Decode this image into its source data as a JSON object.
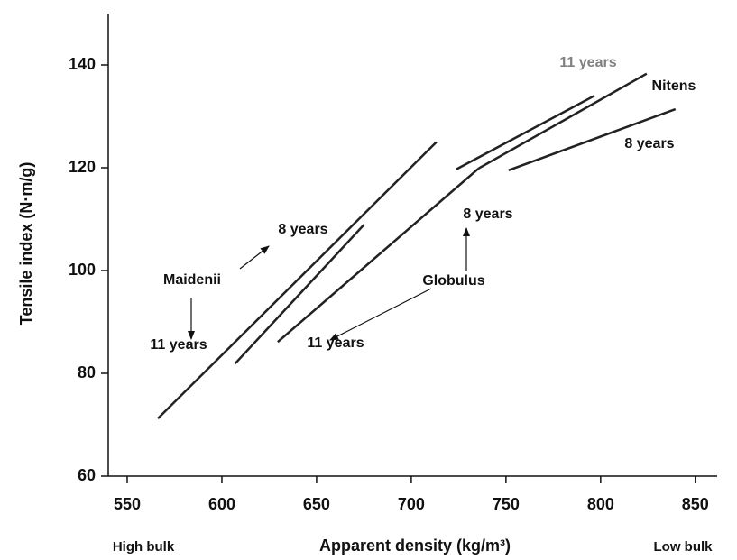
{
  "chart_data": {
    "type": "line",
    "xlabel": "Apparent density (kg/m³)",
    "ylabel": "Tensile index (N·m/g)",
    "left_note": "High bulk",
    "right_note": "Low bulk",
    "xlim": [
      540,
      862
    ],
    "ylim": [
      60,
      150
    ],
    "xticks": [
      550,
      600,
      650,
      700,
      750,
      800,
      850
    ],
    "yticks": [
      60,
      80,
      100,
      120,
      140
    ],
    "series": [
      {
        "color": "#222222",
        "x": [
          566.2,
          713.3
        ],
        "values": [
          71.2,
          125
        ]
      },
      {
        "color": "#222222",
        "x": [
          607,
          675
        ],
        "values": [
          81.9,
          108.9
        ]
      },
      {
        "color": "#222222",
        "x": [
          629.5,
          735.7
        ],
        "values": [
          86.1,
          119.9
        ]
      },
      {
        "color": "#222222",
        "x": [
          723.8,
          796.7
        ],
        "values": [
          119.7,
          134
        ]
      },
      {
        "color": "#222222",
        "x": [
          735.7,
          824.3
        ],
        "values": [
          119.9,
          138.3
        ]
      },
      {
        "color": "#222222",
        "x": [
          751.4,
          839.5
        ],
        "values": [
          119.5,
          131.4
        ]
      }
    ],
    "annotations": [
      {
        "text": "Maidenii",
        "color": "#111111"
      },
      {
        "text": "11 years",
        "color": "#111111"
      },
      {
        "text": "8 years",
        "color": "#111111"
      },
      {
        "text": "Globulus",
        "color": "#111111"
      },
      {
        "text": "11 years",
        "color": "#111111"
      },
      {
        "text": "8 years",
        "color": "#111111"
      },
      {
        "text": "11 years",
        "color": "#808080"
      },
      {
        "text": "Nitens",
        "color": "#111111"
      },
      {
        "text": "8 years",
        "color": "#111111"
      }
    ]
  }
}
